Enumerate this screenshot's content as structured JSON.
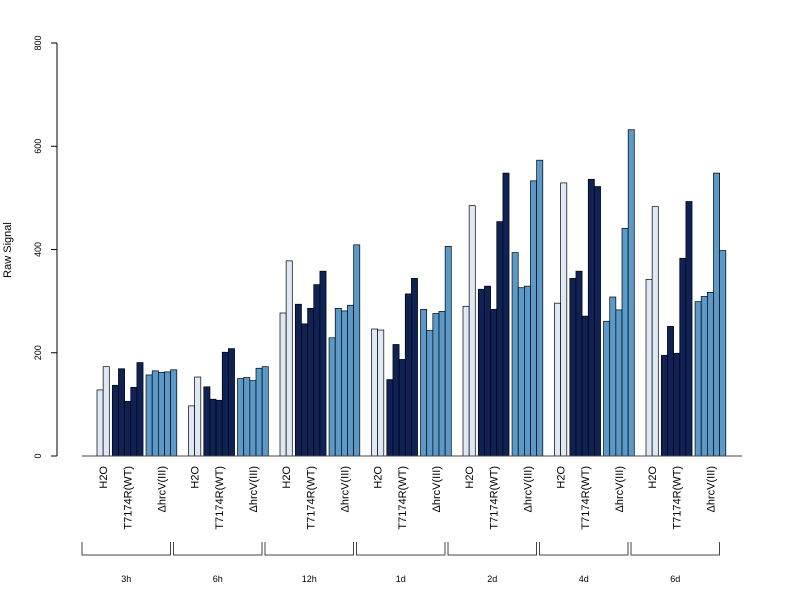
{
  "chart_data": {
    "type": "bar",
    "title": "",
    "xlabel": "",
    "ylabel": "Raw Signal",
    "ylim": [
      0,
      800
    ],
    "yticks": [
      0,
      200,
      400,
      600,
      800
    ],
    "grid": false,
    "colors": {
      "H2O": "#dfe8f5",
      "T7174R(WT)": "#0e2256",
      "ΔhrcV(III)": "#5b9ac8"
    },
    "groups": [
      {
        "label": "3h",
        "conditions": [
          {
            "name": "H2O",
            "values": [
              128,
              173
            ]
          },
          {
            "name": "T7174R(WT)",
            "values": [
              137,
              169,
              106,
              133,
              181
            ]
          },
          {
            "name": "ΔhrcV(III)",
            "values": [
              157,
              165,
              162,
              163,
              167
            ]
          }
        ]
      },
      {
        "label": "6h",
        "conditions": [
          {
            "name": "H2O",
            "values": [
              97,
              153
            ]
          },
          {
            "name": "T7174R(WT)",
            "values": [
              134,
              110,
              108,
              201,
              208
            ]
          },
          {
            "name": "ΔhrcV(III)",
            "values": [
              150,
              152,
              146,
              170,
              173
            ]
          }
        ]
      },
      {
        "label": "12h",
        "conditions": [
          {
            "name": "H2O",
            "values": [
              277,
              378
            ]
          },
          {
            "name": "T7174R(WT)",
            "values": [
              294,
              256,
              286,
              332,
              358
            ]
          },
          {
            "name": "ΔhrcV(III)",
            "values": [
              229,
              286,
              281,
              292,
              409
            ]
          }
        ]
      },
      {
        "label": "1d",
        "conditions": [
          {
            "name": "H2O",
            "values": [
              246,
              244
            ]
          },
          {
            "name": "T7174R(WT)",
            "values": [
              148,
              216,
              187,
              314,
              344
            ]
          },
          {
            "name": "ΔhrcV(III)",
            "values": [
              284,
              243,
              276,
              280,
              406
            ]
          }
        ]
      },
      {
        "label": "2d",
        "conditions": [
          {
            "name": "H2O",
            "values": [
              290,
              485
            ]
          },
          {
            "name": "T7174R(WT)",
            "values": [
              323,
              329,
              284,
              454,
              548
            ]
          },
          {
            "name": "ΔhrcV(III)",
            "values": [
              394,
              326,
              329,
              533,
              573
            ]
          }
        ]
      },
      {
        "label": "4d",
        "conditions": [
          {
            "name": "H2O",
            "values": [
              296,
              529
            ]
          },
          {
            "name": "T7174R(WT)",
            "values": [
              344,
              358,
              271,
              536,
              522
            ]
          },
          {
            "name": "ΔhrcV(III)",
            "values": [
              261,
              308,
              283,
              441,
              632
            ]
          }
        ]
      },
      {
        "label": "6d",
        "conditions": [
          {
            "name": "H2O",
            "values": [
              342,
              483
            ]
          },
          {
            "name": "T7174R(WT)",
            "values": [
              195,
              251,
              199,
              383,
              493
            ]
          },
          {
            "name": "ΔhrcV(III)",
            "values": [
              299,
              309,
              317,
              548,
              398
            ]
          }
        ]
      }
    ]
  }
}
